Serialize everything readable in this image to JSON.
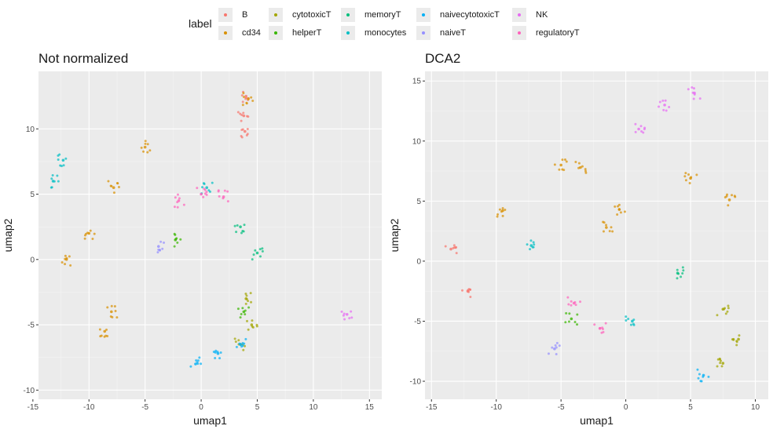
{
  "legend": {
    "title": "label",
    "items": [
      {
        "label": "B",
        "color": "#F8766D"
      },
      {
        "label": "cd34",
        "color": "#D89000"
      },
      {
        "label": "cytotoxicT",
        "color": "#A3A500"
      },
      {
        "label": "helperT",
        "color": "#39B600"
      },
      {
        "label": "memoryT",
        "color": "#00BF7D"
      },
      {
        "label": "monocytes",
        "color": "#00BFC4"
      },
      {
        "label": "naivecytotoxicT",
        "color": "#00B0F6"
      },
      {
        "label": "naiveT",
        "color": "#9590FF"
      },
      {
        "label": "NK",
        "color": "#E76BF3"
      },
      {
        "label": "regulatoryT",
        "color": "#FF62BC"
      }
    ]
  },
  "chart_data": [
    {
      "type": "scatter",
      "title": "Not normalized",
      "xlabel": "umap1",
      "ylabel": "umap2",
      "xlim": [
        -14.5,
        16.1
      ],
      "ylim": [
        -10.7,
        14.4
      ],
      "xticks": [
        -15,
        -10,
        -5,
        0,
        5,
        10,
        15
      ],
      "yticks": [
        -10,
        -5,
        0,
        5,
        10
      ],
      "grid": true,
      "clusters": [
        {
          "label": "B",
          "points": [
            [
              4.0,
              12.5
            ],
            [
              3.8,
              11.0
            ],
            [
              3.9,
              9.8
            ]
          ]
        },
        {
          "label": "cd34",
          "points": [
            [
              -12.0,
              0.0
            ],
            [
              -10.0,
              2.0
            ],
            [
              -7.8,
              5.5
            ],
            [
              -8.6,
              -5.5
            ],
            [
              -8.0,
              -4.0
            ],
            [
              -5.0,
              8.6
            ],
            [
              4.2,
              12.3
            ]
          ]
        },
        {
          "label": "monocytes",
          "points": [
            [
              -13.2,
              6.0
            ],
            [
              -12.3,
              7.6
            ],
            [
              0.5,
              5.5
            ]
          ]
        },
        {
          "label": "regulatoryT",
          "points": [
            [
              -2.0,
              4.5
            ],
            [
              0.0,
              5.0
            ],
            [
              2.0,
              4.8
            ]
          ]
        },
        {
          "label": "naiveT",
          "points": [
            [
              -3.8,
              1.0
            ]
          ]
        },
        {
          "label": "memoryT",
          "points": [
            [
              5.0,
              0.5
            ],
            [
              3.5,
              2.5
            ]
          ]
        },
        {
          "label": "cytotoxicT",
          "points": [
            [
              4.0,
              -3.0
            ],
            [
              4.5,
              -5.0
            ],
            [
              3.5,
              -6.5
            ]
          ]
        },
        {
          "label": "helperT",
          "points": [
            [
              -2.3,
              1.5
            ],
            [
              3.8,
              -4.0
            ]
          ]
        },
        {
          "label": "naivecytotoxicT",
          "points": [
            [
              -0.5,
              -8.0
            ],
            [
              1.5,
              -7.2
            ],
            [
              3.5,
              -6.5
            ]
          ]
        },
        {
          "label": "NK",
          "points": [
            [
              13.0,
              -4.2
            ]
          ]
        }
      ]
    },
    {
      "type": "scatter",
      "title": "DCA2",
      "xlabel": "umap1",
      "ylabel": "umap2",
      "xlim": [
        -15.5,
        11.0
      ],
      "ylim": [
        -11.5,
        15.8
      ],
      "xticks": [
        -15,
        -10,
        -5,
        0,
        5,
        10
      ],
      "yticks": [
        -10,
        -5,
        0,
        5,
        10,
        15
      ],
      "grid": true,
      "clusters": [
        {
          "label": "NK",
          "points": [
            [
              1.0,
              11.0
            ],
            [
              3.0,
              13.0
            ],
            [
              5.3,
              14.0
            ]
          ]
        },
        {
          "label": "cd34",
          "points": [
            [
              -5.0,
              8.0
            ],
            [
              -3.5,
              7.8
            ],
            [
              5.0,
              6.9
            ],
            [
              -1.5,
              2.8
            ],
            [
              -0.5,
              4.3
            ],
            [
              -9.5,
              4.2
            ],
            [
              8.0,
              5.1
            ]
          ]
        },
        {
          "label": "B",
          "points": [
            [
              -13.5,
              1.0
            ],
            [
              -12.2,
              -2.5
            ]
          ]
        },
        {
          "label": "monocytes",
          "points": [
            [
              -7.3,
              1.3
            ],
            [
              0.5,
              -5.0
            ]
          ]
        },
        {
          "label": "regulatoryT",
          "points": [
            [
              -4.0,
              -3.5
            ],
            [
              -2.0,
              -5.6
            ]
          ]
        },
        {
          "label": "helperT",
          "points": [
            [
              -4.2,
              -4.8
            ]
          ]
        },
        {
          "label": "naiveT",
          "points": [
            [
              -5.5,
              -7.3
            ]
          ]
        },
        {
          "label": "memoryT",
          "points": [
            [
              4.0,
              -1.0
            ]
          ]
        },
        {
          "label": "cytotoxicT",
          "points": [
            [
              7.5,
              -4.0
            ],
            [
              8.7,
              -6.5
            ],
            [
              7.5,
              -8.5
            ]
          ]
        },
        {
          "label": "naivecytotoxicT",
          "points": [
            [
              6.0,
              -9.5
            ]
          ]
        }
      ]
    }
  ]
}
